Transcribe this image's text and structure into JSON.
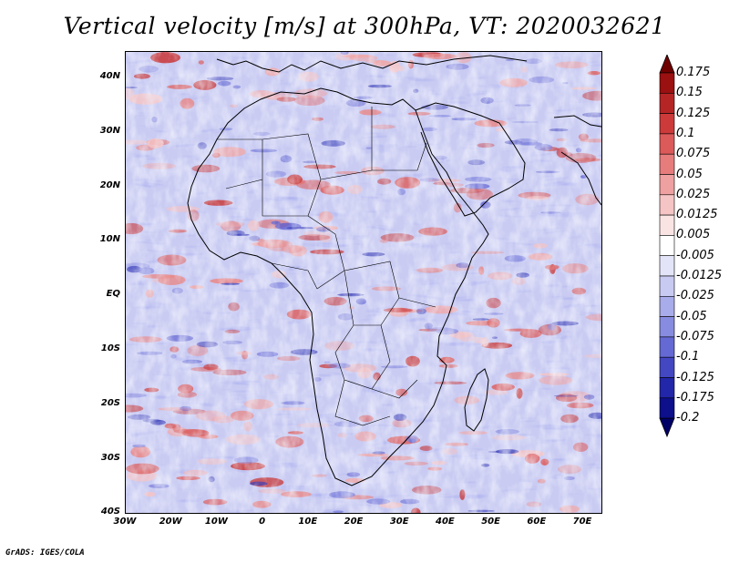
{
  "title": "Vertical velocity [m/s] at 300hPa, VT: 2020032621",
  "credit": "GrADS: IGES/COLA",
  "map": {
    "lat_ticks": [
      "40N",
      "30N",
      "20N",
      "10N",
      "EQ",
      "10S",
      "20S",
      "30S",
      "40S"
    ],
    "lon_ticks": [
      "30W",
      "20W",
      "10W",
      "0",
      "10E",
      "20E",
      "30E",
      "40E",
      "50E",
      "60E",
      "70E"
    ]
  },
  "colorbar": {
    "labels": [
      "0.175",
      "0.15",
      "0.125",
      "0.1",
      "0.075",
      "0.05",
      "0.025",
      "0.0125",
      "0.005",
      "-0.005",
      "-0.0125",
      "-0.025",
      "-0.05",
      "-0.075",
      "-0.1",
      "-0.125",
      "-0.175",
      "-0.2"
    ],
    "colors": [
      "#6e0000",
      "#9b1010",
      "#b52525",
      "#cc3a3a",
      "#dc5a5a",
      "#e67c7c",
      "#efa0a0",
      "#f5c4c4",
      "#fae3e3",
      "#ffffff",
      "#e3e4f8",
      "#c8caf2",
      "#a9acea",
      "#888ce0",
      "#6569d4",
      "#4347c2",
      "#2226a8",
      "#0d108a",
      "#000066"
    ]
  }
}
